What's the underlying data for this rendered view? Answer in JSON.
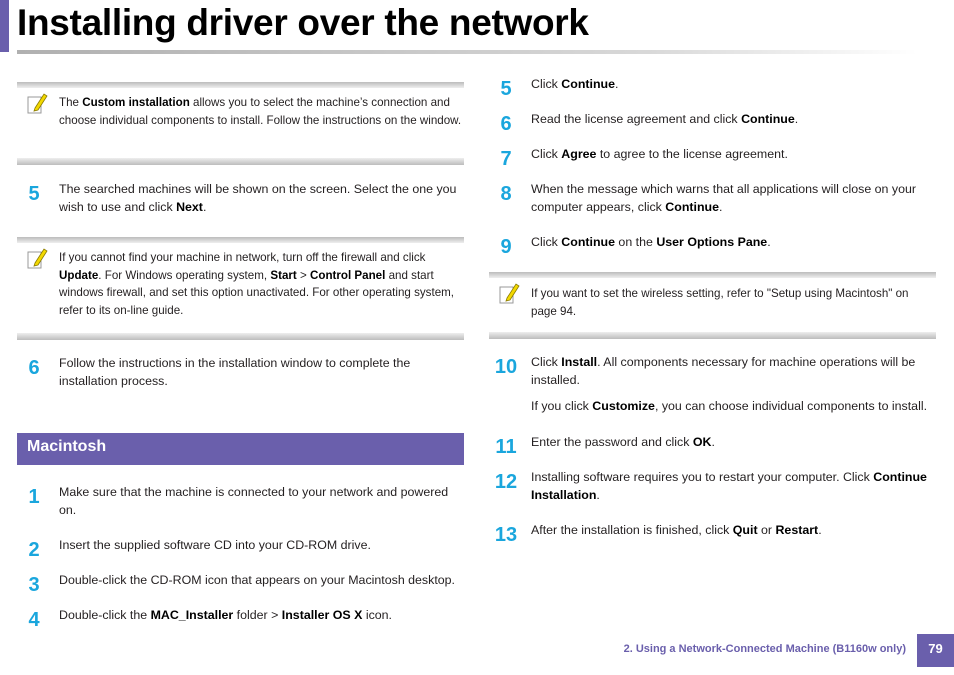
{
  "page_title": "Installing driver over the network",
  "footer": {
    "chapter": "2.  Using a Network-Connected Machine (B1160w only)",
    "page": "79"
  },
  "left": {
    "note1": {
      "t1": "The ",
      "b1": "Custom installation",
      "t2": " allows you to select the machine’s connection and choose individual components to install. Follow the instructions on the window."
    },
    "step5": {
      "num": "5",
      "t1": "The searched machines will be shown on the screen. Select the one you wish to use and click ",
      "b1": "Next",
      "t2": "."
    },
    "note2": {
      "t1": "If you cannot find your machine in network, turn off the firewall and click ",
      "b1": "Update",
      "t2": ". For Windows operating system, ",
      "b2": "Start",
      "t3": " > ",
      "b3": "Control Panel",
      "t4": " and start windows firewall, and set this option unactivated. For other operating system, refer to its on-line guide."
    },
    "step6": {
      "num": "6",
      "t1": "Follow the instructions in the installation window to complete the installation process."
    },
    "section": "Macintosh",
    "mac1": {
      "num": "1",
      "t1": "Make sure that the machine is connected to your network and powered on."
    },
    "mac2": {
      "num": "2",
      "t1": "Insert the supplied software CD into your CD-ROM drive."
    },
    "mac3": {
      "num": "3",
      "t1": "Double-click the CD-ROM icon that appears on your Macintosh desktop."
    },
    "mac4": {
      "num": "4",
      "t1": "Double-click the ",
      "b1": "MAC_Installer",
      "t2": " folder > ",
      "b2": "Installer OS X",
      "t3": " icon."
    }
  },
  "right": {
    "s5": {
      "num": "5",
      "t1": " Click ",
      "b1": "Continue",
      "t2": "."
    },
    "s6": {
      "num": "6",
      "t1": "Read the license agreement and click ",
      "b1": "Continue",
      "t2": "."
    },
    "s7": {
      "num": "7",
      "t1": "Click ",
      "b1": "Agree",
      "t2": " to agree to the license agreement."
    },
    "s8": {
      "num": "8",
      "t1": "When the message which warns that all applications will close on your computer appears, click ",
      "b1": "Continue",
      "t2": "."
    },
    "s9": {
      "num": "9",
      "t1": "Click ",
      "b1": "Continue",
      "t2": " on the ",
      "b2": "User Options Pane",
      "t3": "."
    },
    "note": {
      "t1": "If you want to set the wireless setting, refer to \"Setup using Macintosh\" on page 94."
    },
    "s10": {
      "num": "10",
      "t1": "Click ",
      "b1": "Install",
      "t2": ". All components necessary for machine operations will be installed.",
      "t3": "If you click ",
      "b2": "Customize",
      "t4": ", you can choose individual components to install."
    },
    "s11": {
      "num": "11",
      "t1": "Enter the password and click ",
      "b1": "OK",
      "t2": "."
    },
    "s12": {
      "num": "12",
      "t1": "Installing software requires you to restart your computer. Click ",
      "b1": "Continue Installation",
      "t2": "."
    },
    "s13": {
      "num": "13",
      "t1": "After the installation is finished, click ",
      "b1": "Quit",
      "t2": " or ",
      "b2": "Restart",
      "t3": "."
    }
  },
  "colors": {
    "accent": "#6a5fac",
    "step_number": "#1aa6dd",
    "note_icon": "#f2d800"
  },
  "icons": {
    "note": "pencil-note-icon"
  }
}
